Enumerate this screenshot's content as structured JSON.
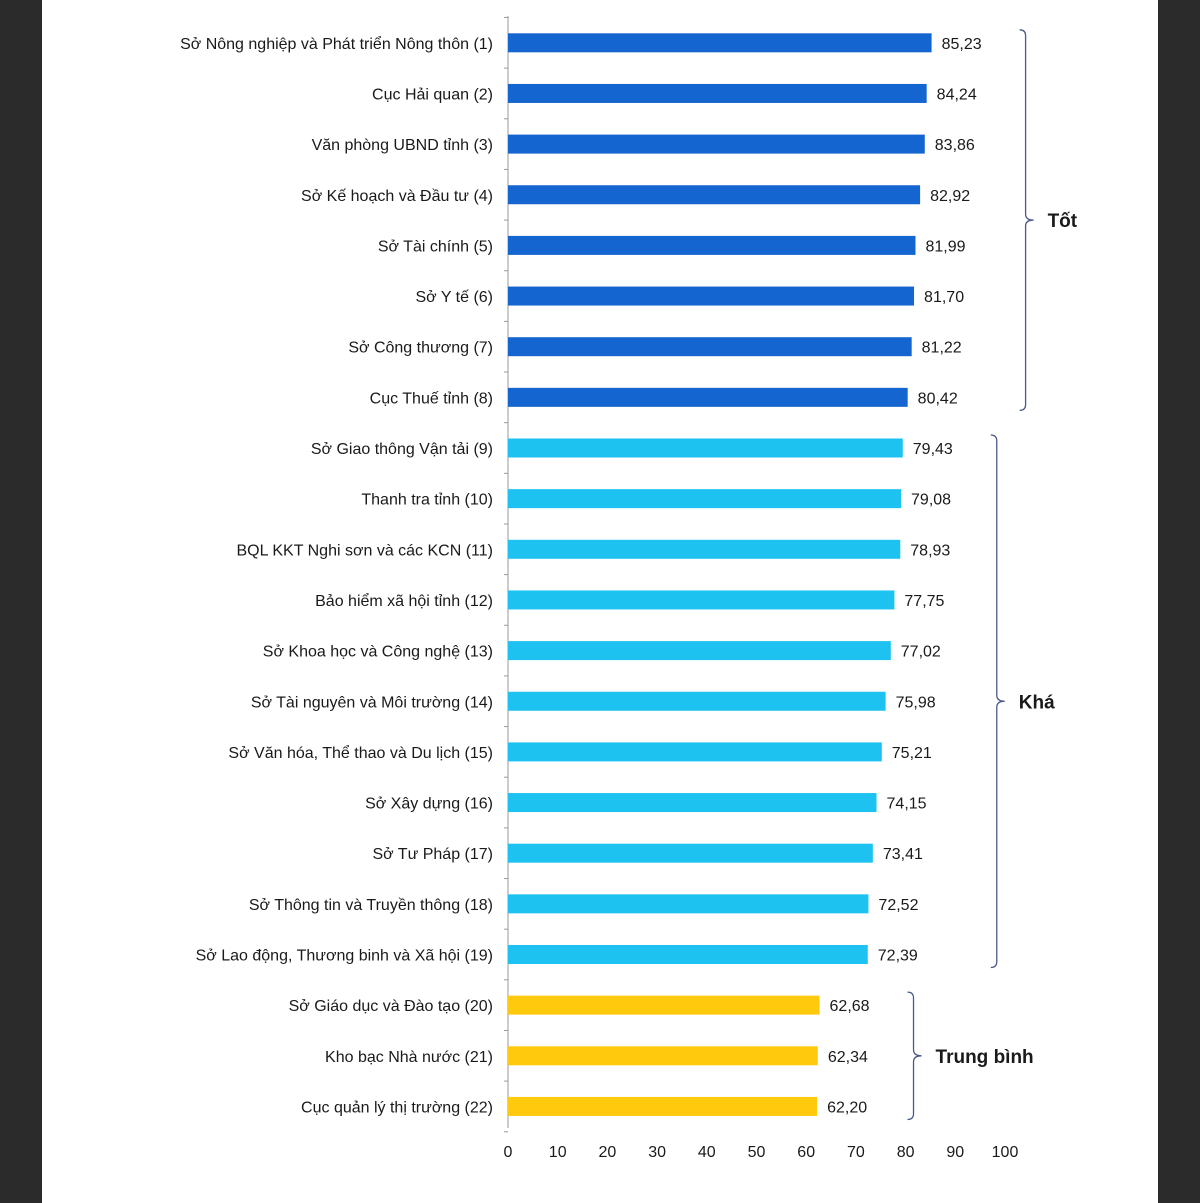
{
  "colors": {
    "tot": "#1565d0",
    "kha": "#1ec2f0",
    "trung_binh": "#ffc90e"
  },
  "chart_data": {
    "type": "bar",
    "orientation": "horizontal",
    "categories": [
      "Sở Nông nghiệp và Phát triển Nông thôn (1)",
      "Cục Hải quan (2)",
      "Văn phòng UBND tỉnh (3)",
      "Sở Kế hoạch và Đầu tư (4)",
      "Sở Tài chính (5)",
      "Sở Y tế (6)",
      "Sở Công thương (7)",
      "Cục Thuế tỉnh (8)",
      "Sở Giao thông Vận tải (9)",
      "Thanh tra tỉnh (10)",
      "BQL KKT Nghi sơn và các KCN (11)",
      "Bảo hiểm xã hội tỉnh (12)",
      "Sở Khoa học và Công nghệ (13)",
      "Sở Tài nguyên và Môi trường (14)",
      "Sở Văn hóa, Thể thao và Du lịch (15)",
      "Sở Xây dựng (16)",
      "Sở Tư Pháp (17)",
      "Sở Thông tin và Truyền thông (18)",
      "Sở Lao động, Thương binh và Xã hội (19)",
      "Sở Giáo dục và Đào tạo (20)",
      "Kho bạc Nhà nước (21)",
      "Cục quản lý thị trường (22)"
    ],
    "values": [
      85.23,
      84.24,
      83.86,
      82.92,
      81.99,
      81.7,
      81.22,
      80.42,
      79.43,
      79.08,
      78.93,
      77.75,
      77.02,
      75.98,
      75.21,
      74.15,
      73.41,
      72.52,
      72.39,
      62.68,
      62.34,
      62.2
    ],
    "value_labels": [
      "85,23",
      "84,24",
      "83,86",
      "82,92",
      "81,99",
      "81,70",
      "81,22",
      "80,42",
      "79,43",
      "79,08",
      "78,93",
      "77,75",
      "77,02",
      "75,98",
      "75,21",
      "74,15",
      "73,41",
      "72,52",
      "72,39",
      "62,68",
      "62,34",
      "62,20"
    ],
    "groups": [
      {
        "label": "Tốt",
        "start": 0,
        "end": 7,
        "color_key": "tot"
      },
      {
        "label": "Khá",
        "start": 8,
        "end": 18,
        "color_key": "kha"
      },
      {
        "label": "Trung bình",
        "start": 19,
        "end": 21,
        "color_key": "trung_binh"
      }
    ],
    "xlim": [
      0,
      100
    ],
    "xticks": [
      0,
      10,
      20,
      30,
      40,
      50,
      60,
      70,
      80,
      90,
      100
    ],
    "title": "",
    "xlabel": "",
    "ylabel": "",
    "grid": false,
    "legend": "none"
  }
}
